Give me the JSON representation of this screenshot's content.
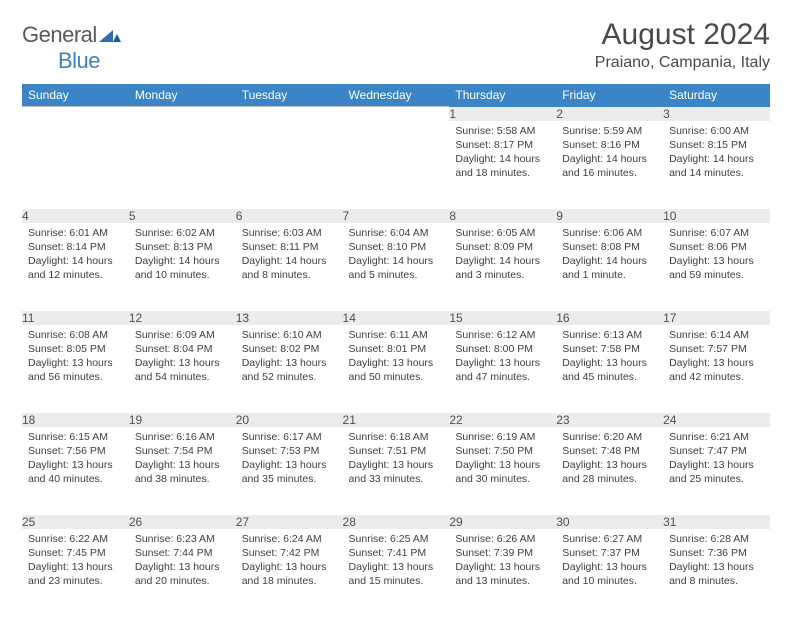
{
  "logo": {
    "word1": "General",
    "word2": "Blue"
  },
  "title": "August 2024",
  "subtitle": "Praiano, Campania, Italy",
  "header_bg": "#3b85c6",
  "daynum_bg": "#ececec",
  "border_color": "#bfbfbf",
  "dow": [
    "Sunday",
    "Monday",
    "Tuesday",
    "Wednesday",
    "Thursday",
    "Friday",
    "Saturday"
  ],
  "weeks": [
    {
      "nums": [
        "",
        "",
        "",
        "",
        1,
        2,
        3
      ],
      "cells": [
        null,
        null,
        null,
        null,
        {
          "sunrise": "5:58 AM",
          "sunset": "8:17 PM",
          "daylight": "14 hours and 18 minutes."
        },
        {
          "sunrise": "5:59 AM",
          "sunset": "8:16 PM",
          "daylight": "14 hours and 16 minutes."
        },
        {
          "sunrise": "6:00 AM",
          "sunset": "8:15 PM",
          "daylight": "14 hours and 14 minutes."
        }
      ]
    },
    {
      "nums": [
        4,
        5,
        6,
        7,
        8,
        9,
        10
      ],
      "cells": [
        {
          "sunrise": "6:01 AM",
          "sunset": "8:14 PM",
          "daylight": "14 hours and 12 minutes."
        },
        {
          "sunrise": "6:02 AM",
          "sunset": "8:13 PM",
          "daylight": "14 hours and 10 minutes."
        },
        {
          "sunrise": "6:03 AM",
          "sunset": "8:11 PM",
          "daylight": "14 hours and 8 minutes."
        },
        {
          "sunrise": "6:04 AM",
          "sunset": "8:10 PM",
          "daylight": "14 hours and 5 minutes."
        },
        {
          "sunrise": "6:05 AM",
          "sunset": "8:09 PM",
          "daylight": "14 hours and 3 minutes."
        },
        {
          "sunrise": "6:06 AM",
          "sunset": "8:08 PM",
          "daylight": "14 hours and 1 minute."
        },
        {
          "sunrise": "6:07 AM",
          "sunset": "8:06 PM",
          "daylight": "13 hours and 59 minutes."
        }
      ]
    },
    {
      "nums": [
        11,
        12,
        13,
        14,
        15,
        16,
        17
      ],
      "cells": [
        {
          "sunrise": "6:08 AM",
          "sunset": "8:05 PM",
          "daylight": "13 hours and 56 minutes."
        },
        {
          "sunrise": "6:09 AM",
          "sunset": "8:04 PM",
          "daylight": "13 hours and 54 minutes."
        },
        {
          "sunrise": "6:10 AM",
          "sunset": "8:02 PM",
          "daylight": "13 hours and 52 minutes."
        },
        {
          "sunrise": "6:11 AM",
          "sunset": "8:01 PM",
          "daylight": "13 hours and 50 minutes."
        },
        {
          "sunrise": "6:12 AM",
          "sunset": "8:00 PM",
          "daylight": "13 hours and 47 minutes."
        },
        {
          "sunrise": "6:13 AM",
          "sunset": "7:58 PM",
          "daylight": "13 hours and 45 minutes."
        },
        {
          "sunrise": "6:14 AM",
          "sunset": "7:57 PM",
          "daylight": "13 hours and 42 minutes."
        }
      ]
    },
    {
      "nums": [
        18,
        19,
        20,
        21,
        22,
        23,
        24
      ],
      "cells": [
        {
          "sunrise": "6:15 AM",
          "sunset": "7:56 PM",
          "daylight": "13 hours and 40 minutes."
        },
        {
          "sunrise": "6:16 AM",
          "sunset": "7:54 PM",
          "daylight": "13 hours and 38 minutes."
        },
        {
          "sunrise": "6:17 AM",
          "sunset": "7:53 PM",
          "daylight": "13 hours and 35 minutes."
        },
        {
          "sunrise": "6:18 AM",
          "sunset": "7:51 PM",
          "daylight": "13 hours and 33 minutes."
        },
        {
          "sunrise": "6:19 AM",
          "sunset": "7:50 PM",
          "daylight": "13 hours and 30 minutes."
        },
        {
          "sunrise": "6:20 AM",
          "sunset": "7:48 PM",
          "daylight": "13 hours and 28 minutes."
        },
        {
          "sunrise": "6:21 AM",
          "sunset": "7:47 PM",
          "daylight": "13 hours and 25 minutes."
        }
      ]
    },
    {
      "nums": [
        25,
        26,
        27,
        28,
        29,
        30,
        31
      ],
      "cells": [
        {
          "sunrise": "6:22 AM",
          "sunset": "7:45 PM",
          "daylight": "13 hours and 23 minutes."
        },
        {
          "sunrise": "6:23 AM",
          "sunset": "7:44 PM",
          "daylight": "13 hours and 20 minutes."
        },
        {
          "sunrise": "6:24 AM",
          "sunset": "7:42 PM",
          "daylight": "13 hours and 18 minutes."
        },
        {
          "sunrise": "6:25 AM",
          "sunset": "7:41 PM",
          "daylight": "13 hours and 15 minutes."
        },
        {
          "sunrise": "6:26 AM",
          "sunset": "7:39 PM",
          "daylight": "13 hours and 13 minutes."
        },
        {
          "sunrise": "6:27 AM",
          "sunset": "7:37 PM",
          "daylight": "13 hours and 10 minutes."
        },
        {
          "sunrise": "6:28 AM",
          "sunset": "7:36 PM",
          "daylight": "13 hours and 8 minutes."
        }
      ]
    }
  ],
  "labels": {
    "sunrise": "Sunrise:",
    "sunset": "Sunset:",
    "daylight": "Daylight:"
  }
}
